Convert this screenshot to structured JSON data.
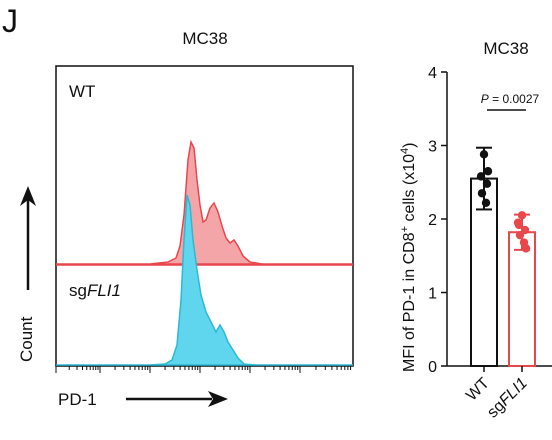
{
  "panel_label": "J",
  "flow": {
    "title": "MC38",
    "top_label": "WT",
    "bottom_label_prefix": "sg",
    "bottom_label_gene": "FLI1",
    "y_arrow_label": "Count",
    "x_arrow_label": "PD-1",
    "colors": {
      "wt": "#e8474c",
      "wt_fill": "#f4a5a8",
      "ko": "#2bb9d6",
      "ko_fill": "#5fd6ee"
    }
  },
  "chart_data": {
    "type": "bar",
    "title": "MC38",
    "categories": [
      "WT",
      "sgFLI1"
    ],
    "tick_labels": [
      {
        "prefix": "",
        "italic": "",
        "plain": "WT"
      },
      {
        "prefix": "sg",
        "italic": "FLI1",
        "plain": ""
      }
    ],
    "ylabel_parts": {
      "pre": "MFI of PD-1 in CD8",
      "sup1": "+",
      "mid": " cells (x10",
      "sup2": "4",
      "post": ")"
    },
    "ylim": [
      0,
      4
    ],
    "yticks": [
      0,
      1,
      2,
      3,
      4
    ],
    "values": [
      2.55,
      1.82
    ],
    "errors": [
      0.42,
      0.24
    ],
    "points": [
      [
        2.88,
        2.58,
        2.48,
        2.35,
        2.22,
        2.65
      ],
      [
        2.05,
        1.92,
        1.85,
        1.78,
        1.68,
        1.6,
        1.95
      ]
    ],
    "colors": [
      "#111111",
      "#e8474c"
    ],
    "annotation": {
      "p_italic": "P",
      "p_rest": " = 0.0027"
    }
  }
}
